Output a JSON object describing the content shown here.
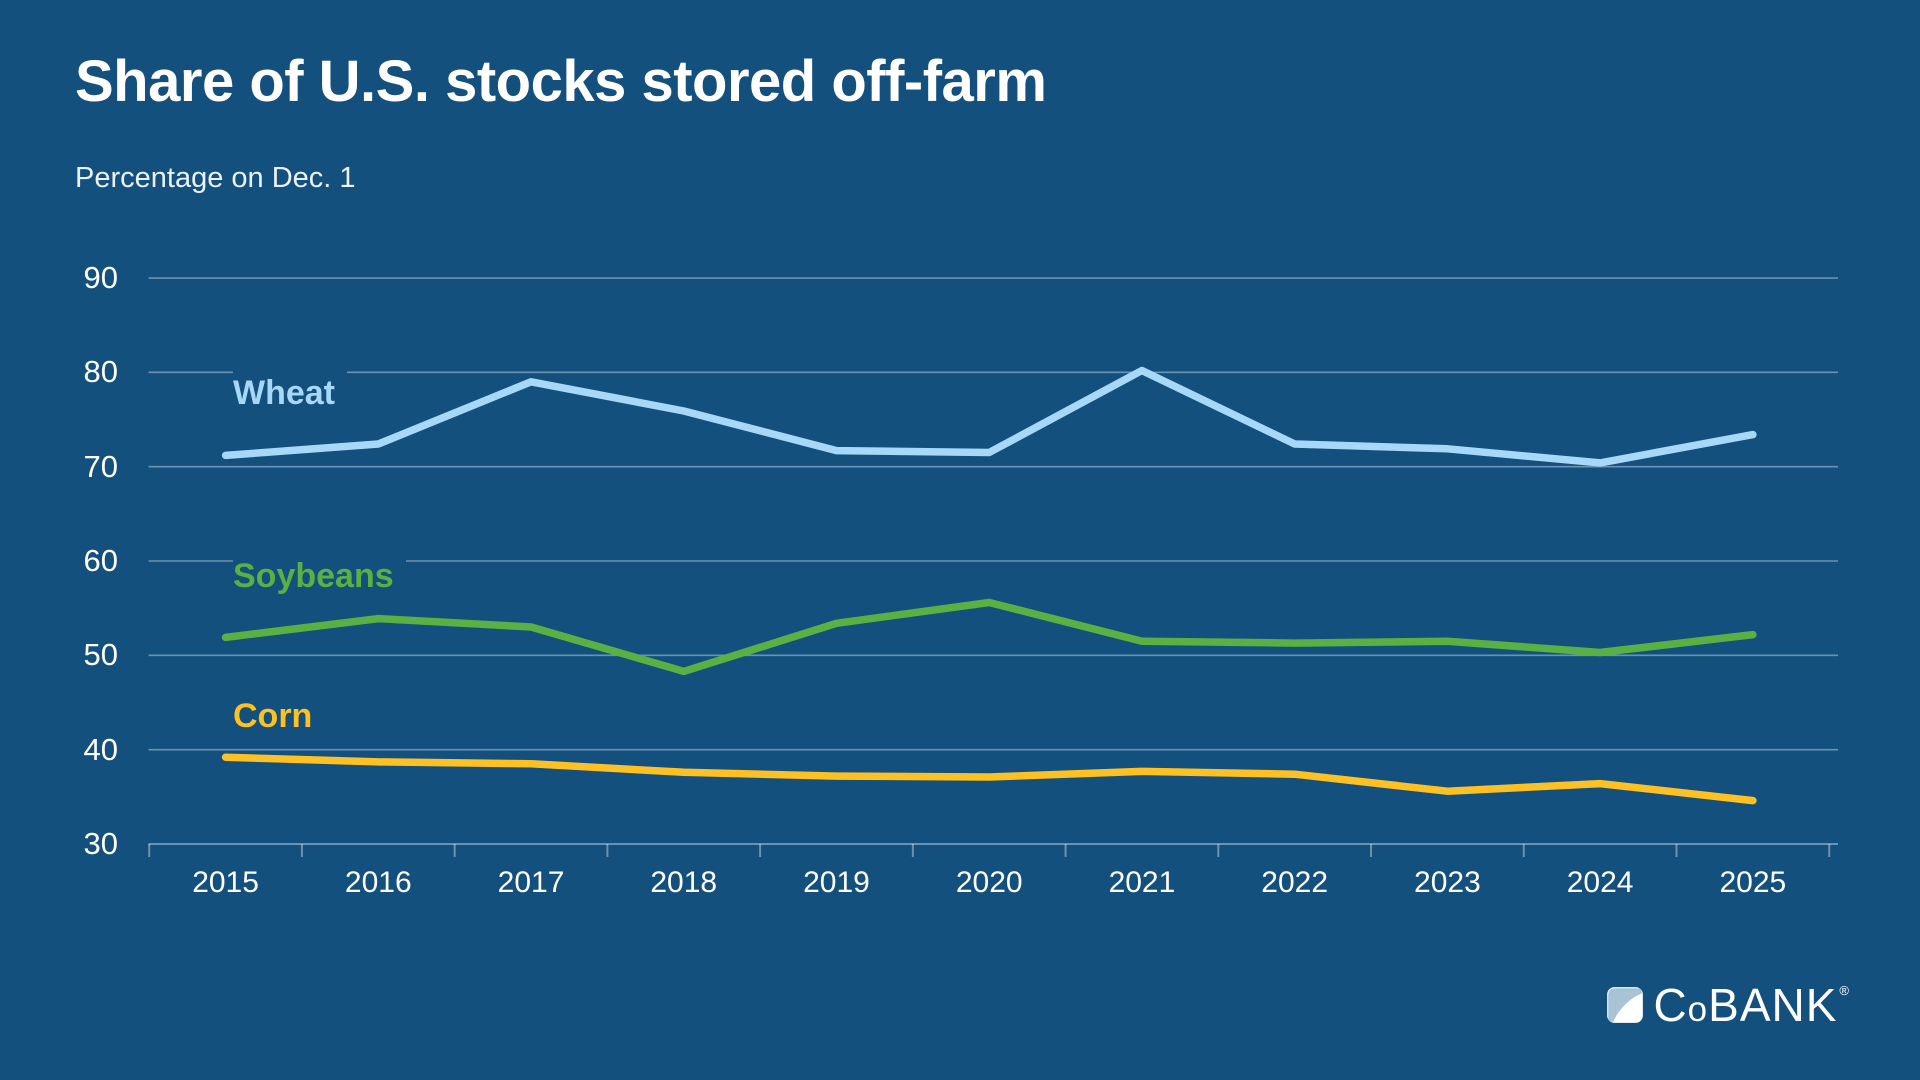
{
  "title": "Share of U.S. stocks stored off-farm",
  "subtitle": "Percentage on Dec. 1",
  "colors": {
    "background": "#14507D",
    "wheat": "#A8D8F8",
    "soybeans": "#5BB044",
    "corn": "#FDC123",
    "grid": "rgba(255,255,255,0.38)",
    "text": "#FFFFFF",
    "logo_swoosh": "#A9C3D4"
  },
  "chart_data": {
    "type": "line",
    "title": "Share of U.S. stocks stored off-farm",
    "subtitle": "Percentage on Dec. 1",
    "x": [
      "2015",
      "2016",
      "2017",
      "2018",
      "2019",
      "2020",
      "2021",
      "2022",
      "2023",
      "2024",
      "2025"
    ],
    "series": [
      {
        "name": "Wheat",
        "color_key": "wheat",
        "values": [
          71.2,
          72.4,
          79.0,
          75.9,
          71.7,
          71.5,
          80.2,
          72.4,
          71.9,
          70.4,
          73.4
        ]
      },
      {
        "name": "Soybeans",
        "color_key": "soybeans",
        "values": [
          51.9,
          53.9,
          53.0,
          48.3,
          53.4,
          55.6,
          51.5,
          51.3,
          51.5,
          50.3,
          52.2
        ]
      },
      {
        "name": "Corn",
        "color_key": "corn",
        "values": [
          39.2,
          38.7,
          38.5,
          37.6,
          37.2,
          37.1,
          37.7,
          37.4,
          35.6,
          36.4,
          34.6
        ]
      }
    ],
    "ylim": [
      30,
      90
    ],
    "yticks": [
      30,
      40,
      50,
      60,
      70,
      80,
      90
    ],
    "grid": true,
    "legend_position": "inline-labels-left"
  },
  "logo": {
    "c": "C",
    "o": "o",
    "bank": "BANK",
    "reg": "®"
  }
}
